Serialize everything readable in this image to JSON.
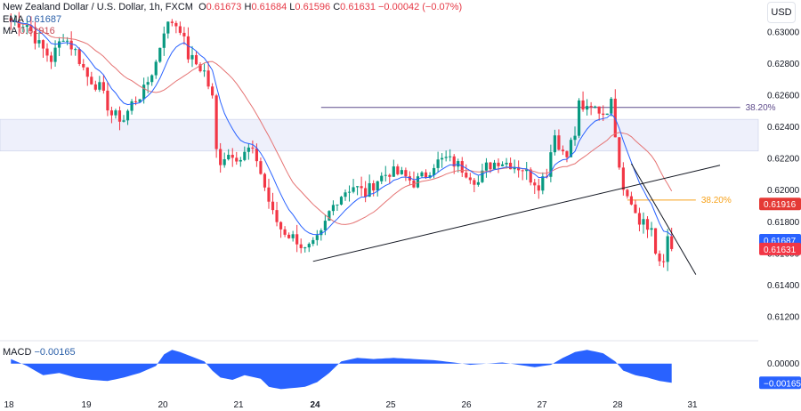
{
  "header": {
    "symbol": "New Zealand Dollar / U.S. Dollar, 1h, FXCM",
    "open_label": "O",
    "open": "0.61673",
    "high_label": "H",
    "high": "0.61684",
    "low_label": "L",
    "low": "0.61596",
    "close_label": "C",
    "close": "0.61631",
    "change": "−0.00042 (−0.07%)"
  },
  "indicators": {
    "ema_label": "EMA",
    "ema_value": "0.61687",
    "ma_label": "MA",
    "ma_value": "0.61916",
    "macd_label": "MACD",
    "macd_value": "−0.00165"
  },
  "currency_button": "USD",
  "colors": {
    "up": "#089981",
    "down": "#f23645",
    "ema": "#2962ff",
    "ma": "#e57373",
    "macd": "#2962ff",
    "zone": "#eef0fb",
    "fib_top": "#5e4b8b",
    "fib_mid": "#f7a21b",
    "tag_ma": "#e53935",
    "tag_ema": "#2962ff",
    "tag_price": "#f23645"
  },
  "chart_data": {
    "type": "candlestick",
    "instrument": "NZDUSD",
    "timeframe": "1h",
    "ylim": [
      0.6108,
      0.6317
    ],
    "y_ticks": [
      "0.63000",
      "0.62800",
      "0.62600",
      "0.62400",
      "0.62200",
      "0.62000",
      "0.61800",
      "0.61600",
      "0.61400",
      "0.61200"
    ],
    "x_ticks": [
      {
        "label": "18",
        "bold": false
      },
      {
        "label": "19",
        "bold": false
      },
      {
        "label": "20",
        "bold": false
      },
      {
        "label": "21",
        "bold": false
      },
      {
        "label": "24",
        "bold": true
      },
      {
        "label": "25",
        "bold": false
      },
      {
        "label": "26",
        "bold": false
      },
      {
        "label": "27",
        "bold": false
      },
      {
        "label": "28",
        "bold": false
      },
      {
        "label": "31",
        "bold": false
      }
    ],
    "price_path": [
      [
        0,
        0.6307
      ],
      [
        4,
        0.6305
      ],
      [
        7,
        0.6292
      ],
      [
        10,
        0.6283
      ],
      [
        13,
        0.6298
      ],
      [
        16,
        0.6288
      ],
      [
        19,
        0.6272
      ],
      [
        22,
        0.6265
      ],
      [
        25,
        0.6248
      ],
      [
        28,
        0.6245
      ],
      [
        30,
        0.6255
      ],
      [
        33,
        0.6263
      ],
      [
        36,
        0.6281
      ],
      [
        38,
        0.6302
      ],
      [
        40,
        0.6307
      ],
      [
        42,
        0.6303
      ],
      [
        44,
        0.6285
      ],
      [
        46,
        0.628
      ],
      [
        48,
        0.6275
      ],
      [
        50,
        0.6258
      ],
      [
        51,
        0.6225
      ],
      [
        52,
        0.6219
      ],
      [
        53,
        0.6222
      ],
      [
        55,
        0.6224
      ],
      [
        57,
        0.622
      ],
      [
        59,
        0.6226
      ],
      [
        61,
        0.622
      ],
      [
        63,
        0.6202
      ],
      [
        65,
        0.6185
      ],
      [
        67,
        0.6176
      ],
      [
        69,
        0.6172
      ],
      [
        71,
        0.6169
      ],
      [
        73,
        0.6162
      ],
      [
        75,
        0.6165
      ],
      [
        77,
        0.6172
      ],
      [
        79,
        0.6186
      ],
      [
        81,
        0.6195
      ],
      [
        83,
        0.62
      ],
      [
        85,
        0.6203
      ],
      [
        88,
        0.6198
      ],
      [
        91,
        0.6207
      ],
      [
        94,
        0.6212
      ],
      [
        97,
        0.621
      ],
      [
        100,
        0.6205
      ],
      [
        103,
        0.621
      ],
      [
        105,
        0.6217
      ],
      [
        108,
        0.622
      ],
      [
        111,
        0.6216
      ],
      [
        114,
        0.621
      ],
      [
        116,
        0.6205
      ],
      [
        118,
        0.6215
      ],
      [
        121,
        0.6219
      ],
      [
        124,
        0.6217
      ],
      [
        127,
        0.6214
      ],
      [
        129,
        0.6208
      ],
      [
        131,
        0.6204
      ],
      [
        133,
        0.6212
      ],
      [
        135,
        0.6238
      ],
      [
        136,
        0.6226
      ],
      [
        138,
        0.6225
      ],
      [
        140,
        0.6235
      ],
      [
        141,
        0.6255
      ],
      [
        143,
        0.625
      ],
      [
        145,
        0.6252
      ],
      [
        147,
        0.6249
      ],
      [
        149,
        0.6255
      ],
      [
        150,
        0.6237
      ],
      [
        151,
        0.6218
      ],
      [
        152,
        0.6203
      ],
      [
        153,
        0.6198
      ],
      [
        154,
        0.6195
      ],
      [
        155,
        0.6185
      ],
      [
        156,
        0.6179
      ],
      [
        157,
        0.6183
      ],
      [
        158,
        0.6175
      ],
      [
        159,
        0.6173
      ],
      [
        160,
        0.616
      ],
      [
        161,
        0.6156
      ],
      [
        162,
        0.6158
      ],
      [
        163,
        0.6168
      ],
      [
        164,
        0.6163
      ]
    ],
    "zone": {
      "top": 0.6245,
      "bottom": 0.6225
    },
    "fibonacci": [
      {
        "label": "38.20%",
        "price": 0.62525,
        "from_bar": 77,
        "to_bar": 181,
        "color": "fib_top"
      },
      {
        "label": "38.20%",
        "price": 0.6194,
        "from_bar": 153,
        "to_bar": 170,
        "color": "fib_mid"
      }
    ],
    "trendlines": [
      {
        "from": [
          75,
          0.61553
        ],
        "to": [
          176,
          0.6216
        ]
      },
      {
        "from": [
          154,
          0.6217
        ],
        "to": [
          170,
          0.6147
        ]
      }
    ],
    "price_tags": [
      {
        "value": "0.61916",
        "price": 0.61916,
        "color": "tag_ma"
      },
      {
        "value": "0.61687",
        "price": 0.61687,
        "color": "tag_ema"
      },
      {
        "value": "0.61631",
        "price": 0.61631,
        "color": "tag_price"
      }
    ],
    "macd": {
      "ylim": [
        -0.0024,
        0.0016
      ],
      "y_ticks": [
        "0.00000"
      ],
      "tag": {
        "value": "−0.00165",
        "level": -0.00165,
        "color": "tag_ema"
      },
      "path": [
        [
          0,
          0.0004
        ],
        [
          4,
          -0.0002
        ],
        [
          8,
          -0.001
        ],
        [
          12,
          -0.0008
        ],
        [
          16,
          -0.0012
        ],
        [
          20,
          -0.0014
        ],
        [
          24,
          -0.0015
        ],
        [
          28,
          -0.0012
        ],
        [
          32,
          -0.0008
        ],
        [
          36,
          -0.0002
        ],
        [
          38,
          0.0008
        ],
        [
          40,
          0.0012
        ],
        [
          42,
          0.001
        ],
        [
          45,
          0.0006
        ],
        [
          48,
          0.0002
        ],
        [
          50,
          -0.0006
        ],
        [
          52,
          -0.0012
        ],
        [
          55,
          -0.0014
        ],
        [
          58,
          -0.001
        ],
        [
          62,
          -0.0013
        ],
        [
          64,
          -0.002
        ],
        [
          67,
          -0.0022
        ],
        [
          70,
          -0.0021
        ],
        [
          73,
          -0.002
        ],
        [
          76,
          -0.0016
        ],
        [
          79,
          -0.0008
        ],
        [
          82,
          0.0002
        ],
        [
          86,
          0.0005
        ],
        [
          90,
          0.0004
        ],
        [
          95,
          0.0005
        ],
        [
          100,
          0.0004
        ],
        [
          105,
          0.0003
        ],
        [
          110,
          0.0001
        ],
        [
          114,
          -0.0001
        ],
        [
          118,
          0.0
        ],
        [
          122,
          0.0001
        ],
        [
          126,
          -0.0001
        ],
        [
          130,
          -0.0003
        ],
        [
          134,
          -0.0001
        ],
        [
          137,
          0.0005
        ],
        [
          140,
          0.001
        ],
        [
          143,
          0.0012
        ],
        [
          147,
          0.0009
        ],
        [
          150,
          0.0002
        ],
        [
          152,
          -0.0006
        ],
        [
          155,
          -0.001
        ],
        [
          158,
          -0.0012
        ],
        [
          161,
          -0.0015
        ],
        [
          164,
          -0.00165
        ]
      ]
    }
  }
}
